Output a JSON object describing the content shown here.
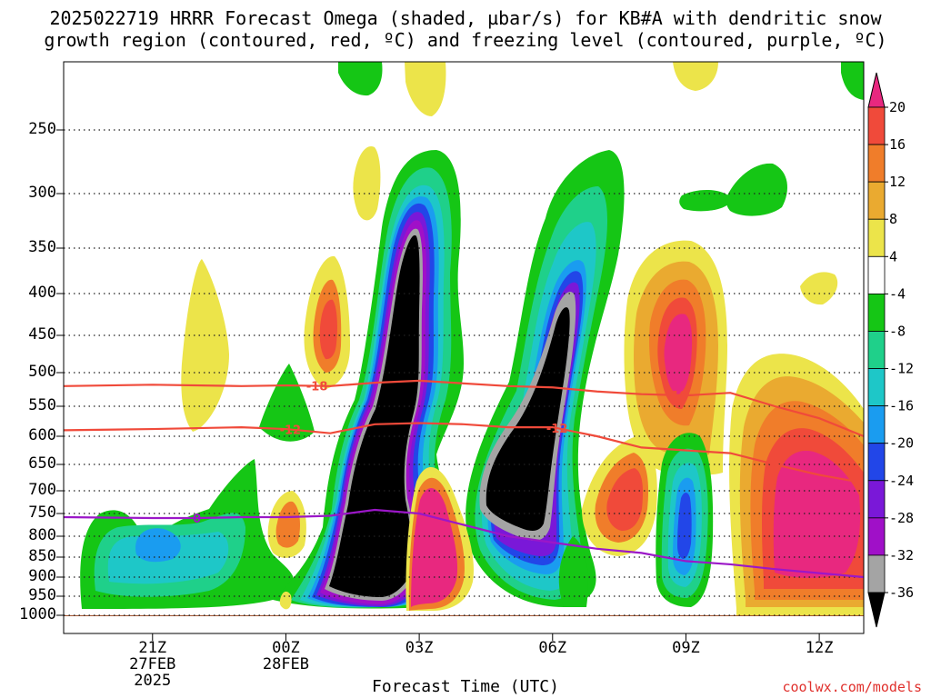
{
  "title_line1": "2025022719 HRRR Forecast Omega (shaded, µbar/s) for KB#A with dendritic snow",
  "title_line2": "growth region (contoured, red, ºC) and freezing level (contoured, purple, ºC)",
  "credit": "coolwx.com/models",
  "chart_data": {
    "type": "time-height cross-section (filled contour)",
    "xlabel": "Forecast Time (UTC)",
    "x_ticks": [
      {
        "label": "21Z",
        "sub1": "27FEB",
        "sub2": "2025",
        "hours": 2
      },
      {
        "label": "00Z",
        "sub1": "28FEB",
        "sub2": "",
        "hours": 5
      },
      {
        "label": "03Z",
        "sub1": "",
        "sub2": "",
        "hours": 8
      },
      {
        "label": "06Z",
        "sub1": "",
        "sub2": "",
        "hours": 11
      },
      {
        "label": "09Z",
        "sub1": "",
        "sub2": "",
        "hours": 14
      },
      {
        "label": "12Z",
        "sub1": "",
        "sub2": "",
        "hours": 17
      }
    ],
    "x_range_hours": [
      0,
      18
    ],
    "y_axis": "pressure (hPa), reversed",
    "y_ticks": [
      250,
      300,
      350,
      400,
      450,
      500,
      550,
      600,
      650,
      700,
      750,
      800,
      850,
      900,
      950,
      1000
    ],
    "y_range": [
      200,
      1010
    ],
    "grid": "dotted horizontal at y ticks",
    "colorbar": {
      "levels": [
        20,
        16,
        12,
        8,
        4,
        -4,
        -8,
        -12,
        -16,
        -20,
        -24,
        -28,
        -32,
        -36
      ],
      "colors": [
        "#e8287f",
        "#f04a3a",
        "#f07d2a",
        "#eaaa30",
        "#ece44a",
        "#ffffff",
        "#15c615",
        "#1fd08a",
        "#1ec7c8",
        "#1a9cf0",
        "#2246e8",
        "#7a18d8",
        "#a010c8",
        "#a4a4a4",
        "#000000"
      ]
    },
    "isotherm_dendritic_upper": {
      "label": "-18",
      "color": "#f04a3a",
      "points": [
        [
          0,
          520
        ],
        [
          2,
          518
        ],
        [
          4,
          520
        ],
        [
          5,
          519
        ],
        [
          6,
          520
        ],
        [
          7,
          515
        ],
        [
          8,
          512
        ],
        [
          9,
          516
        ],
        [
          10,
          520
        ],
        [
          11,
          522
        ],
        [
          12,
          528
        ],
        [
          13,
          532
        ],
        [
          14,
          534
        ],
        [
          15,
          530
        ],
        [
          16,
          550
        ],
        [
          17,
          570
        ],
        [
          18,
          600
        ]
      ]
    },
    "isotherm_dendritic_lower": {
      "label": "-12",
      "color": "#f04a3a",
      "points": [
        [
          0,
          590
        ],
        [
          2,
          588
        ],
        [
          4,
          585
        ],
        [
          5,
          588
        ],
        [
          6,
          595
        ],
        [
          7,
          580
        ],
        [
          8,
          578
        ],
        [
          9,
          580
        ],
        [
          10,
          585
        ],
        [
          11,
          585
        ],
        [
          12,
          600
        ],
        [
          13,
          620
        ],
        [
          14,
          625
        ],
        [
          15,
          630
        ],
        [
          16,
          650
        ],
        [
          17,
          670
        ],
        [
          18,
          685
        ]
      ]
    },
    "isotherm_freezing": {
      "label": "0",
      "color": "#9b17c8",
      "points": [
        [
          0,
          758
        ],
        [
          2,
          760
        ],
        [
          3,
          760
        ],
        [
          4,
          758
        ],
        [
          5,
          758
        ],
        [
          6,
          755
        ],
        [
          7,
          742
        ],
        [
          8,
          750
        ],
        [
          9,
          775
        ],
        [
          10,
          800
        ],
        [
          11,
          815
        ],
        [
          12,
          830
        ],
        [
          13,
          840
        ],
        [
          14,
          860
        ],
        [
          15,
          868
        ],
        [
          16,
          880
        ],
        [
          17,
          890
        ],
        [
          18,
          900
        ]
      ]
    }
  }
}
